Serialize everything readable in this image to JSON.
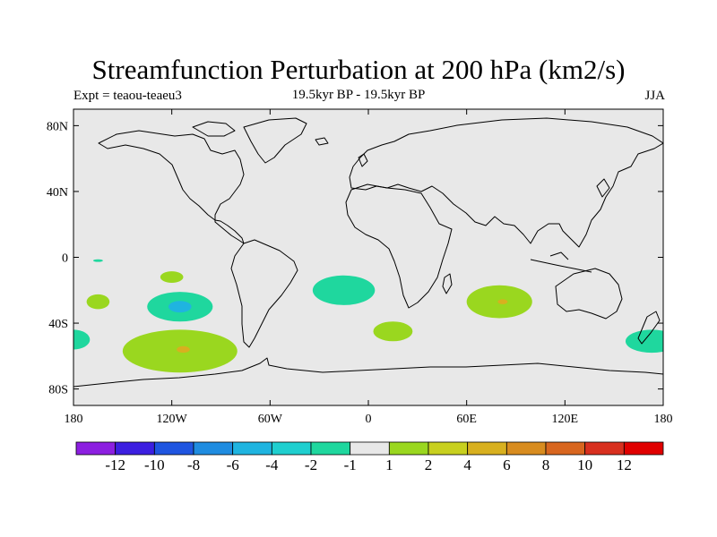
{
  "title": "Streamfunction Perturbation at 200 hPa (km2/s)",
  "subtitle_left": "Expt = teaou-teaeu3",
  "subtitle_center": "19.5kyr BP - 19.5kyr BP",
  "subtitle_right": "JJA",
  "y_ticks": [
    {
      "value": 80,
      "label": "80N"
    },
    {
      "value": 40,
      "label": "40N"
    },
    {
      "value": 0,
      "label": "0"
    },
    {
      "value": -40,
      "label": "40S"
    },
    {
      "value": -80,
      "label": "80S"
    }
  ],
  "x_ticks": [
    {
      "value": -180,
      "label": "180"
    },
    {
      "value": -120,
      "label": "120W"
    },
    {
      "value": -60,
      "label": "60W"
    },
    {
      "value": 0,
      "label": "0"
    },
    {
      "value": 60,
      "label": "60E"
    },
    {
      "value": 120,
      "label": "120E"
    },
    {
      "value": 180,
      "label": "180"
    }
  ],
  "colorbar": {
    "colors": [
      "#8c1fe0",
      "#3c1fe0",
      "#1f55e0",
      "#1f8ce0",
      "#1fb4e0",
      "#1fcfcf",
      "#1fd79e",
      "#e8e8e8",
      "#9ad71f",
      "#c8d01f",
      "#d8b01f",
      "#d88c1f",
      "#d8661f",
      "#d8301f",
      "#e00000"
    ],
    "labels": [
      "-12",
      "-10",
      "-8",
      "-6",
      "-4",
      "-2",
      "-1",
      "1",
      "2",
      "4",
      "6",
      "8",
      "10",
      "12"
    ]
  },
  "map": {
    "ocean_color": "#e8e8e8",
    "lon_range": [
      -180,
      180
    ],
    "lat_range": [
      -90,
      90
    ],
    "anomalies": [
      {
        "name": "blob-central-pacific-neg",
        "lon": -115,
        "lat": -30,
        "rlon": 20,
        "rlat": 9,
        "fill": "#1fd79e"
      },
      {
        "name": "blob-central-pacific-core",
        "lon": -115,
        "lat": -30,
        "rlon": 7,
        "rlat": 3.5,
        "fill": "#1fb4e0"
      },
      {
        "name": "blob-atlantic-neg",
        "lon": -15,
        "lat": -20,
        "rlon": 19,
        "rlat": 9,
        "fill": "#1fd79e"
      },
      {
        "name": "blob-indian-pos",
        "lon": 80,
        "lat": -27,
        "rlon": 20,
        "rlat": 10,
        "fill": "#9ad71f"
      },
      {
        "name": "blob-indian-core",
        "lon": 82,
        "lat": -27,
        "rlon": 3,
        "rlat": 1.5,
        "fill": "#d8b01f"
      },
      {
        "name": "blob-south-atlantic-pos",
        "lon": 15,
        "lat": -45,
        "rlon": 12,
        "rlat": 6,
        "fill": "#9ad71f"
      },
      {
        "name": "blob-southern-pacific-pos",
        "lon": -115,
        "lat": -57,
        "rlon": 35,
        "rlat": 13,
        "fill": "#9ad71f"
      },
      {
        "name": "blob-southern-pacific-core",
        "lon": -113,
        "lat": -56,
        "rlon": 4,
        "rlat": 2,
        "fill": "#d8b01f"
      },
      {
        "name": "blob-small-pos-1",
        "lon": -120,
        "lat": -12,
        "rlon": 7,
        "rlat": 3.5,
        "fill": "#9ad71f"
      },
      {
        "name": "blob-small-pos-2",
        "lon": -165,
        "lat": -27,
        "rlon": 7,
        "rlat": 4.5,
        "fill": "#9ad71f"
      },
      {
        "name": "blob-west-edge-neg",
        "lon": -180,
        "lat": -50,
        "rlon": 10,
        "rlat": 6,
        "fill": "#1fd79e"
      },
      {
        "name": "blob-east-edge-neg",
        "lon": 173,
        "lat": -51,
        "rlon": 16,
        "rlat": 7,
        "fill": "#1fd79e"
      },
      {
        "name": "blob-tiny-neg",
        "lon": -165,
        "lat": -2,
        "rlon": 3,
        "rlat": 0.8,
        "fill": "#1fd79e"
      }
    ]
  }
}
